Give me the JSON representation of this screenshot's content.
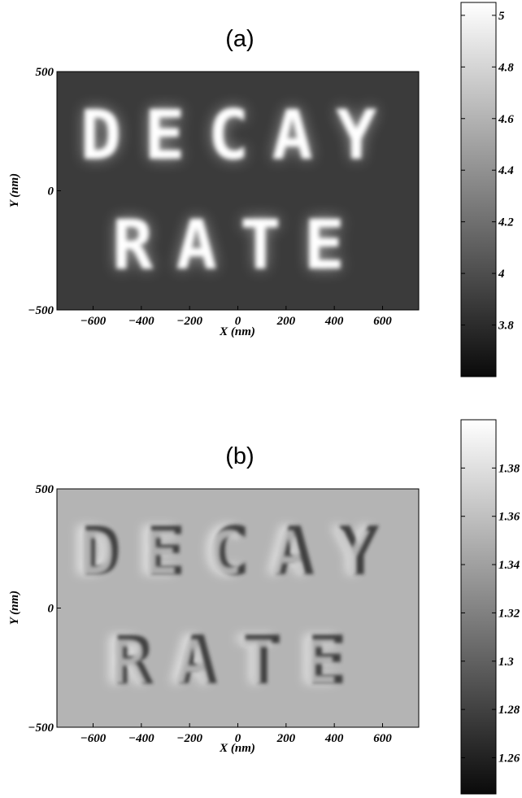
{
  "chart_data": [
    {
      "type": "heatmap",
      "title": "(a)",
      "xlabel": "X (nm)",
      "ylabel": "Y (nm)",
      "xlim": [
        -750,
        750
      ],
      "ylim": [
        -500,
        500
      ],
      "xticks": [
        -600,
        -400,
        -200,
        0,
        200,
        400,
        600
      ],
      "yticks": [
        -500,
        0,
        500
      ],
      "image_text": [
        "DECAY",
        "RATE"
      ],
      "colorbar": {
        "range": [
          3.6,
          5.05
        ],
        "ticks": [
          "3.8",
          "4",
          "4.2",
          "4.4",
          "4.6",
          "4.8",
          "5"
        ],
        "colormap": "gray"
      },
      "background_value": 3.75,
      "letter_value": 5.0
    },
    {
      "type": "heatmap",
      "title": "(b)",
      "xlabel": "X (nm)",
      "ylabel": "Y (nm)",
      "xlim": [
        -750,
        750
      ],
      "ylim": [
        -500,
        500
      ],
      "xticks": [
        -600,
        -400,
        -200,
        0,
        200,
        400,
        600
      ],
      "yticks": [
        -500,
        0,
        500
      ],
      "image_text": [
        "DECAY",
        "RATE"
      ],
      "colorbar": {
        "range": [
          1.245,
          1.4
        ],
        "ticks": [
          "1.26",
          "1.28",
          "1.3",
          "1.32",
          "1.34",
          "1.36",
          "1.38"
        ],
        "colormap": "gray"
      },
      "background_value": 1.32
    }
  ]
}
